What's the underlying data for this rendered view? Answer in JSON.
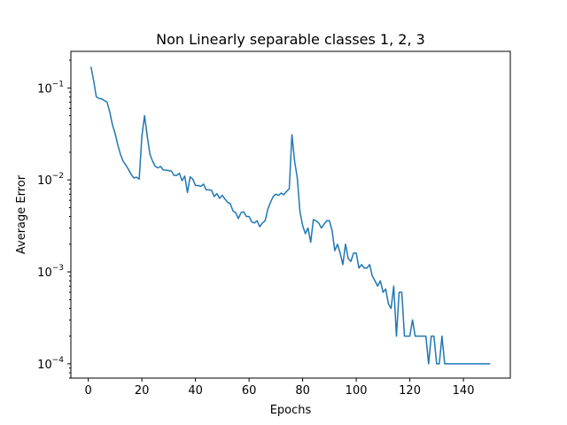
{
  "chart_data": {
    "type": "line",
    "title": "Non Linearly separable classes 1, 2, 3",
    "xlabel": "Epochs",
    "ylabel": "Average Error",
    "xlim": [
      -6.5,
      157.5
    ],
    "ylim": [
      7e-05,
      0.25
    ],
    "yscale": "log",
    "grid": false,
    "x_ticks": [
      0,
      20,
      40,
      60,
      80,
      100,
      120,
      140
    ],
    "y_ticks": [
      {
        "value": 0.0001,
        "base": "10",
        "exp": "−4"
      },
      {
        "value": 0.001,
        "base": "10",
        "exp": "−3"
      },
      {
        "value": 0.01,
        "base": "10",
        "exp": "−2"
      },
      {
        "value": 0.1,
        "base": "10",
        "exp": "−1"
      }
    ],
    "line_color": "#1f77b4",
    "series": [
      {
        "x": [
          1,
          2,
          3,
          4,
          5,
          6,
          7,
          8,
          9,
          10,
          11,
          12,
          13,
          14,
          15,
          16,
          17,
          18,
          19,
          20,
          21,
          22,
          23,
          24,
          25,
          26,
          27,
          28,
          29,
          30,
          31,
          32,
          33,
          34,
          35,
          36,
          37,
          38,
          39,
          40,
          41,
          42,
          43,
          44,
          45,
          46,
          47,
          48,
          49,
          50,
          51,
          52,
          53,
          54,
          55,
          56,
          57,
          58,
          59,
          60,
          61,
          62,
          63,
          64,
          65,
          66,
          67,
          68,
          69,
          70,
          71,
          72,
          73,
          74,
          75,
          76,
          77,
          78,
          79,
          80,
          81,
          82,
          83,
          84,
          85,
          86,
          87,
          88,
          89,
          90,
          91,
          92,
          93,
          94,
          95,
          96,
          97,
          98,
          99,
          100,
          101,
          102,
          103,
          104,
          105,
          106,
          107,
          108,
          109,
          110,
          111,
          112,
          113,
          114,
          115,
          116,
          117,
          118,
          119,
          120,
          121,
          122,
          123,
          124,
          125,
          126,
          127,
          128,
          129,
          130,
          131,
          132,
          133,
          134,
          135,
          136,
          137,
          138,
          139,
          140,
          141,
          142,
          143,
          144,
          145,
          146,
          147,
          148,
          149,
          150
        ],
        "y": [
          0.17,
          0.12,
          0.08,
          0.077,
          0.076,
          0.073,
          0.07,
          0.055,
          0.04,
          0.032,
          0.024,
          0.019,
          0.016,
          0.0145,
          0.013,
          0.0115,
          0.0105,
          0.0107,
          0.0102,
          0.03,
          0.05,
          0.03,
          0.019,
          0.016,
          0.014,
          0.0135,
          0.014,
          0.0128,
          0.0128,
          0.0126,
          0.0125,
          0.0112,
          0.0112,
          0.0118,
          0.0098,
          0.011,
          0.0073,
          0.0108,
          0.0102,
          0.0087,
          0.0087,
          0.0085,
          0.009,
          0.0078,
          0.0078,
          0.0077,
          0.0066,
          0.0071,
          0.0063,
          0.0068,
          0.0062,
          0.0057,
          0.0055,
          0.0046,
          0.0044,
          0.0038,
          0.0044,
          0.0045,
          0.004,
          0.004,
          0.0035,
          0.0034,
          0.0036,
          0.0031,
          0.0034,
          0.0036,
          0.0048,
          0.0057,
          0.0066,
          0.007,
          0.0068,
          0.0072,
          0.0069,
          0.0075,
          0.008,
          0.031,
          0.016,
          0.0105,
          0.0045,
          0.0032,
          0.0026,
          0.003,
          0.0021,
          0.0037,
          0.0036,
          0.0034,
          0.003,
          0.0033,
          0.0036,
          0.0036,
          0.0028,
          0.0017,
          0.002,
          0.0016,
          0.0012,
          0.002,
          0.0014,
          0.0013,
          0.0016,
          0.0016,
          0.0011,
          0.0012,
          0.0011,
          0.0011,
          0.0012,
          0.0009,
          0.0008,
          0.0007,
          0.0008,
          0.0006,
          0.00065,
          0.00045,
          0.0004,
          0.0007,
          0.0002,
          0.0006,
          0.0006,
          0.0002,
          0.0002,
          0.0002,
          0.0003,
          0.0002,
          0.0002,
          0.0002,
          0.0002,
          0.0002,
          0.0001,
          0.0002,
          0.0002,
          0.0001,
          0.0001,
          0.0002,
          0.0001,
          0.0001,
          0.0001,
          0.0001,
          0.0001,
          0.0001,
          0.0001,
          0.0001,
          0.0001,
          0.0001,
          0.0001,
          0.0001,
          0.0001,
          0.0001,
          0.0001,
          0.0001,
          0.0001,
          0.0001
        ]
      }
    ]
  }
}
